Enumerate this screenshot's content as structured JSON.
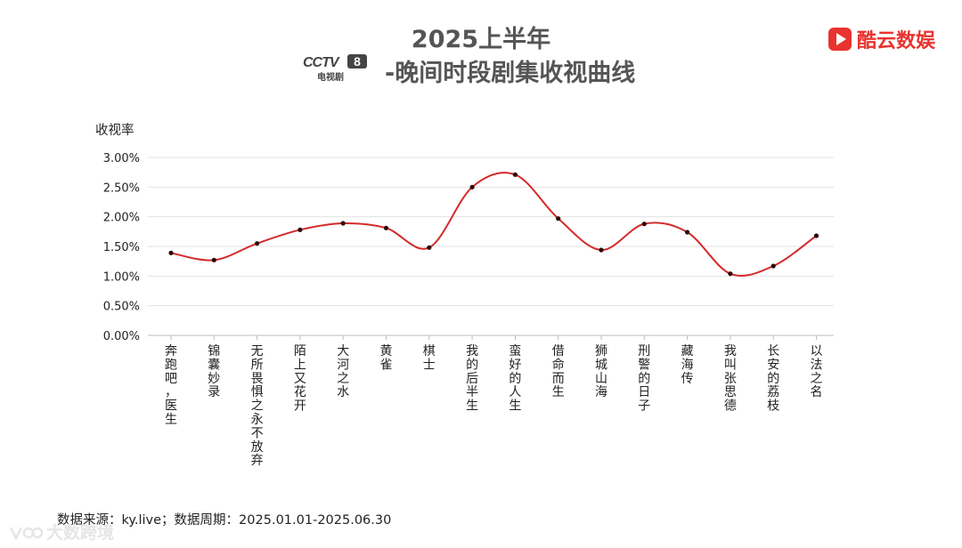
{
  "title": {
    "line1": "2025上半年",
    "line2": "-晚间时段剧集收视曲线"
  },
  "channel_logo": {
    "mark": "CCTV",
    "number": "8",
    "subtitle": "电视剧"
  },
  "brand": {
    "name": "酷云数娱",
    "color": "#e8332f"
  },
  "source_note": "数据来源：ky.live；数据周期：2025.01.01-2025.06.30",
  "watermark": "大数跨境",
  "chart_data": {
    "type": "line",
    "ylabel": "收视率",
    "ylim": [
      0,
      3.0
    ],
    "yticks": [
      "0.00%",
      "0.50%",
      "1.00%",
      "1.50%",
      "2.00%",
      "2.50%",
      "3.00%"
    ],
    "grid": true,
    "line_color": "#d42a2a",
    "categories": [
      "奔跑吧，医生",
      "锦囊妙录",
      "无所畏惧之永不放弃",
      "陌上又花开",
      "大河之水",
      "黄雀",
      "棋士",
      "我的后半生",
      "蛮好的人生",
      "借命而生",
      "狮城山海",
      "刑警的日子",
      "藏海传",
      "我叫张思德",
      "长安的荔枝",
      "以法之名"
    ],
    "values": [
      1.39,
      1.27,
      1.55,
      1.78,
      1.89,
      1.81,
      1.48,
      2.5,
      2.71,
      1.97,
      1.44,
      1.88,
      1.74,
      1.04,
      1.17,
      1.68
    ]
  }
}
